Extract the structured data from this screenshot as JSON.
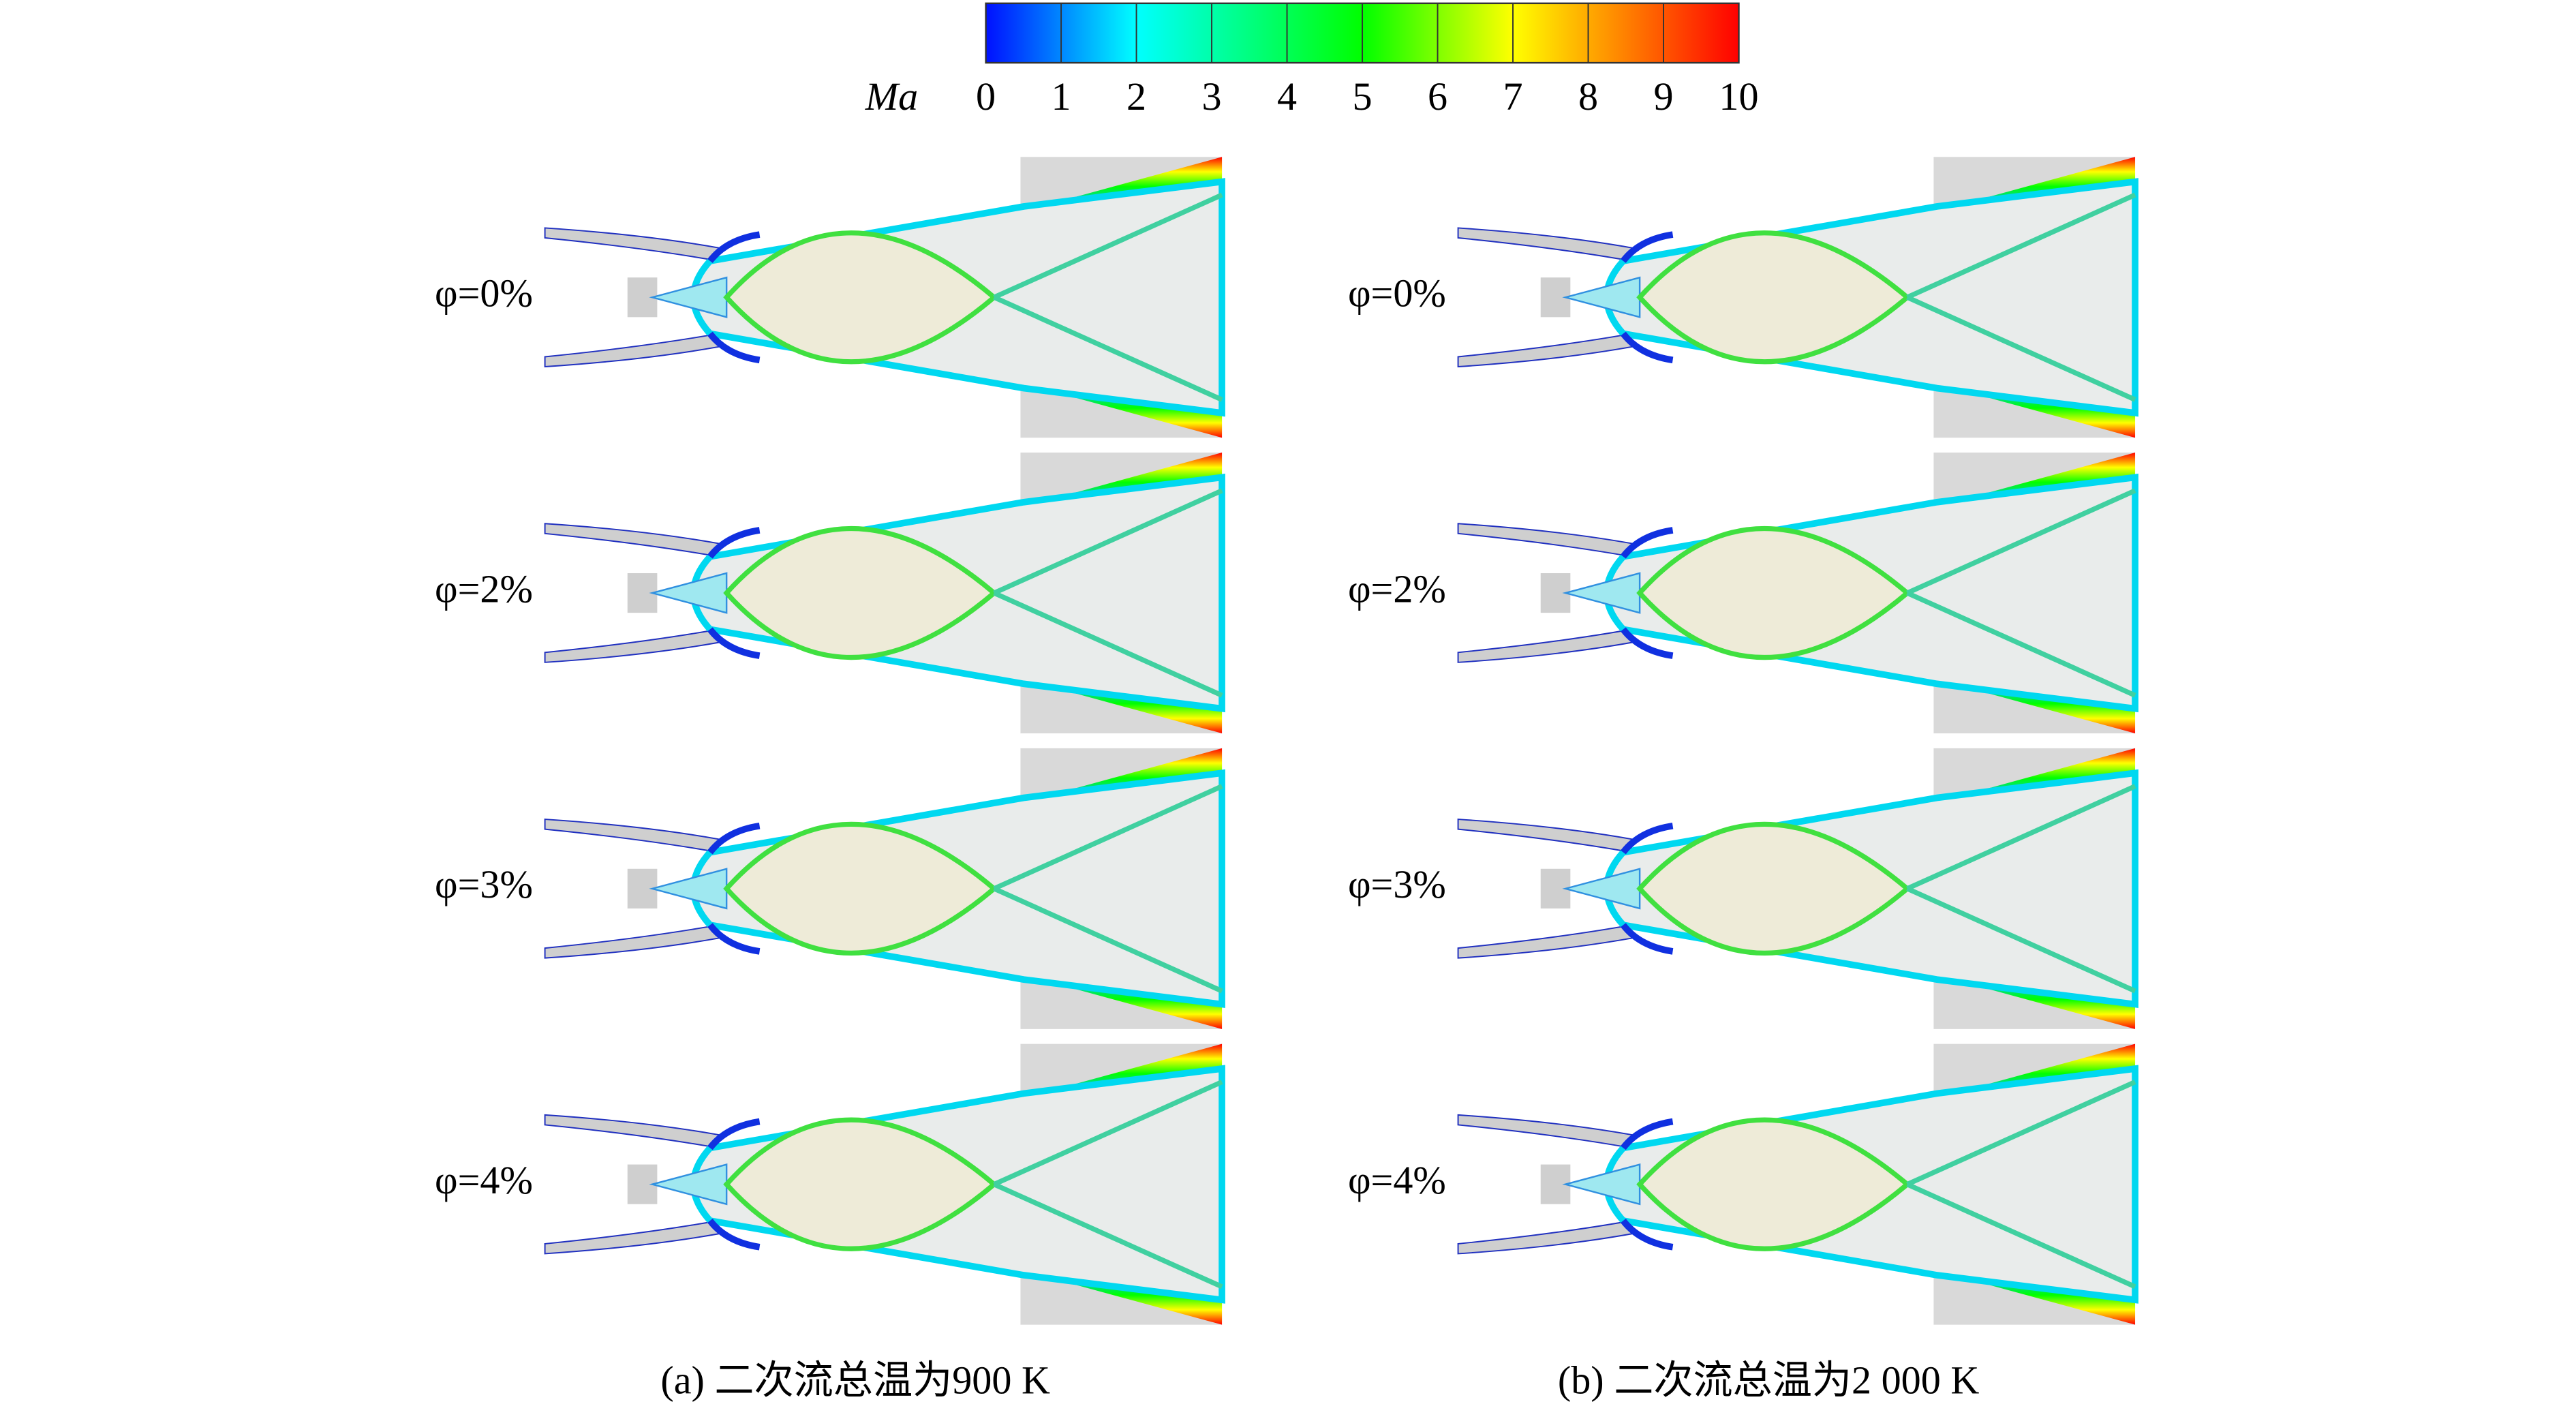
{
  "colorbar": {
    "label": "Ma",
    "lim": [
      0,
      10
    ],
    "ticks": [
      0,
      1,
      2,
      3,
      4,
      5,
      6,
      7,
      8,
      9,
      10
    ]
  },
  "panels": [
    {
      "caption": "(a) 二次流总温为900 K",
      "rows": [
        "φ=0%",
        "φ=2%",
        "φ=3%",
        "φ=4%"
      ]
    },
    {
      "caption": "(b) 二次流总温为2 000 K",
      "rows": [
        "φ=0%",
        "φ=2%",
        "φ=3%",
        "φ=4%"
      ]
    }
  ]
}
